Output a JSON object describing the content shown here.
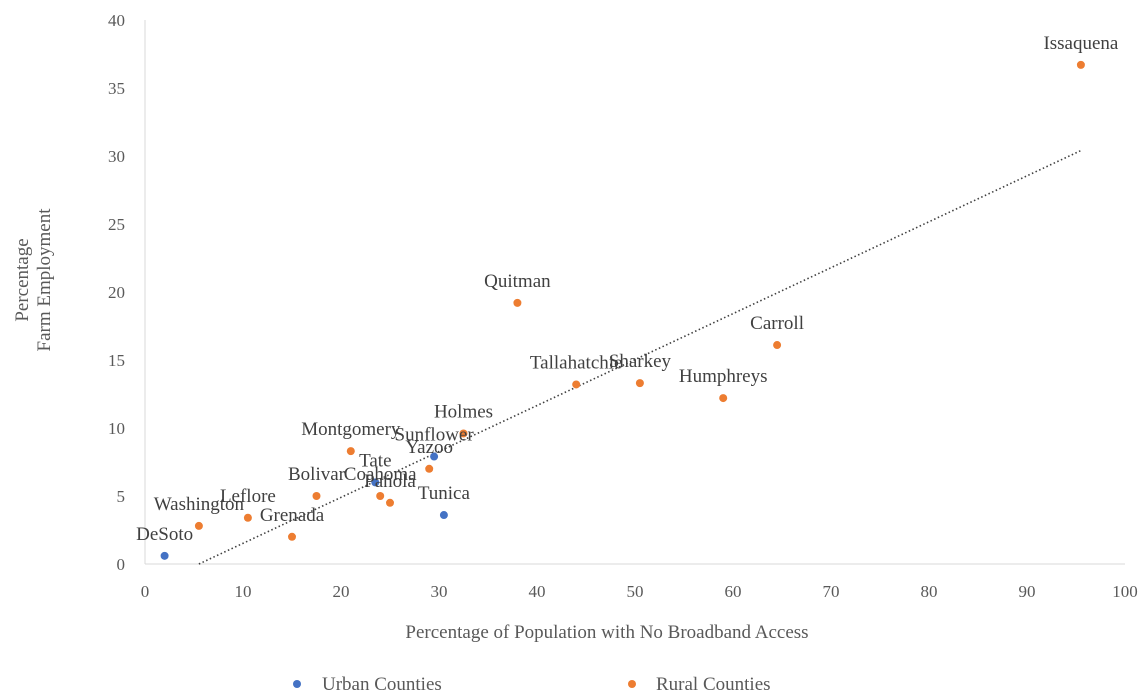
{
  "chart_data": {
    "type": "scatter",
    "title": "",
    "xlabel": "Percentage of Population with No Broadband Access",
    "ylabel_lines": [
      "Percentage",
      "Farm Employment"
    ],
    "xlim": [
      0,
      100
    ],
    "ylim": [
      0,
      40
    ],
    "x_ticks": [
      0,
      10,
      20,
      30,
      40,
      50,
      60,
      70,
      80,
      90,
      100
    ],
    "y_ticks": [
      0,
      5,
      10,
      15,
      20,
      25,
      30,
      35,
      40
    ],
    "grid": false,
    "legend": "bottom",
    "series": [
      {
        "name": "Urban Counties",
        "color": "#4472c4",
        "points": [
          {
            "label": "DeSoto",
            "x": 2.0,
            "y": 0.6
          },
          {
            "label": "Tate",
            "x": 23.5,
            "y": 6.0
          },
          {
            "label": "Sunflower",
            "x": 29.5,
            "y": 7.9
          },
          {
            "label": "Tunica",
            "x": 30.5,
            "y": 3.6
          }
        ]
      },
      {
        "name": "Rural Counties",
        "color": "#ed7d31",
        "points": [
          {
            "label": "Washington",
            "x": 5.5,
            "y": 2.8
          },
          {
            "label": "Leflore",
            "x": 10.5,
            "y": 3.4
          },
          {
            "label": "Grenada",
            "x": 15.0,
            "y": 2.0
          },
          {
            "label": "Bolivar",
            "x": 17.5,
            "y": 5.0
          },
          {
            "label": "Montgomery",
            "x": 21.0,
            "y": 8.3
          },
          {
            "label": "Coahoma",
            "x": 24.0,
            "y": 5.0
          },
          {
            "label": "Panola",
            "x": 25.0,
            "y": 4.5
          },
          {
            "label": "Yazoo",
            "x": 29.0,
            "y": 7.0
          },
          {
            "label": "Holmes",
            "x": 32.5,
            "y": 9.6
          },
          {
            "label": "Quitman",
            "x": 38.0,
            "y": 19.2
          },
          {
            "label": "Tallahatchie",
            "x": 44.0,
            "y": 13.2
          },
          {
            "label": "Sharkey",
            "x": 50.5,
            "y": 13.3
          },
          {
            "label": "Humphreys",
            "x": 59.0,
            "y": 12.2
          },
          {
            "label": "Carroll",
            "x": 64.5,
            "y": 16.1
          },
          {
            "label": "Issaquena",
            "x": 95.5,
            "y": 36.7
          }
        ]
      }
    ],
    "trendline": {
      "style": "dotted",
      "color": "#404040",
      "x": [
        5.5,
        95.5
      ],
      "y": [
        0.0,
        30.4
      ]
    }
  }
}
